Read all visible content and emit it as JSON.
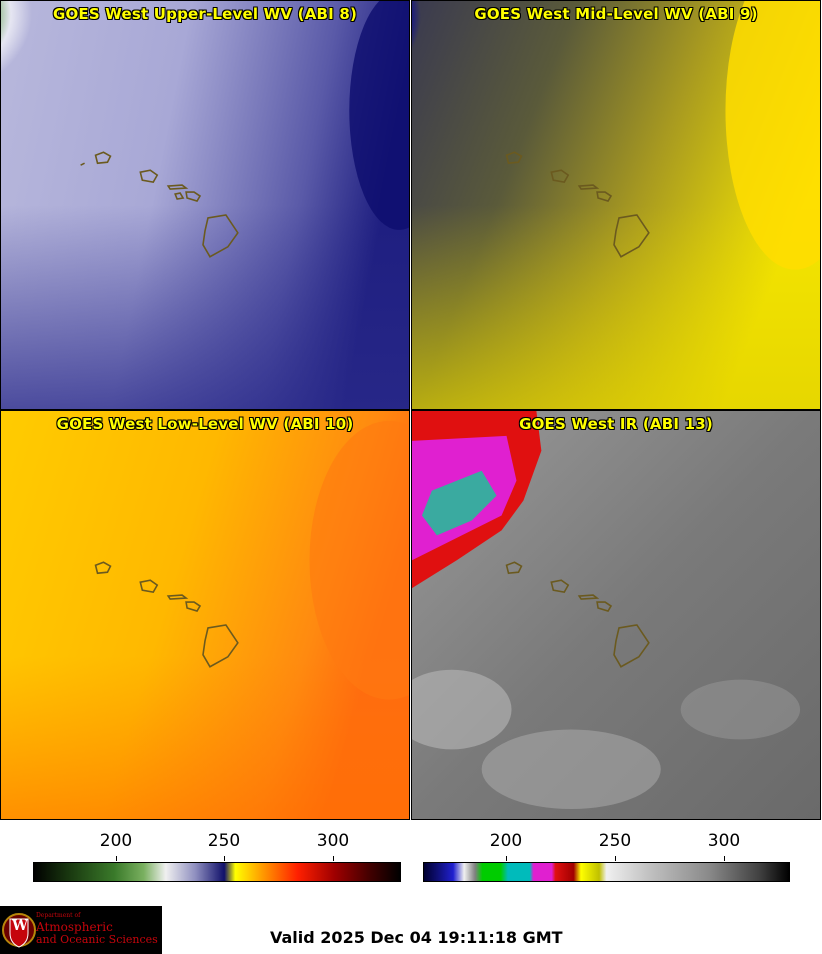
{
  "panels": [
    {
      "title": "GOES West Upper-Level WV (ABI 8)"
    },
    {
      "title": "GOES West Mid-Level WV (ABI 9)"
    },
    {
      "title": "GOES West Low-Level WV (ABI 10)"
    },
    {
      "title": "GOES West IR (ABI 13)"
    }
  ],
  "colorbars": {
    "wv": {
      "ticks": [
        "200",
        "250",
        "300"
      ]
    },
    "ir": {
      "ticks": [
        "200",
        "250",
        "300"
      ]
    }
  },
  "logo": {
    "line1": "Department of",
    "line2": "Atmospheric",
    "line3": "and Oceanic Sciences",
    "crest_letter": "W"
  },
  "valid_text": "Valid 2025 Dec 04 19:11:18 GMT"
}
